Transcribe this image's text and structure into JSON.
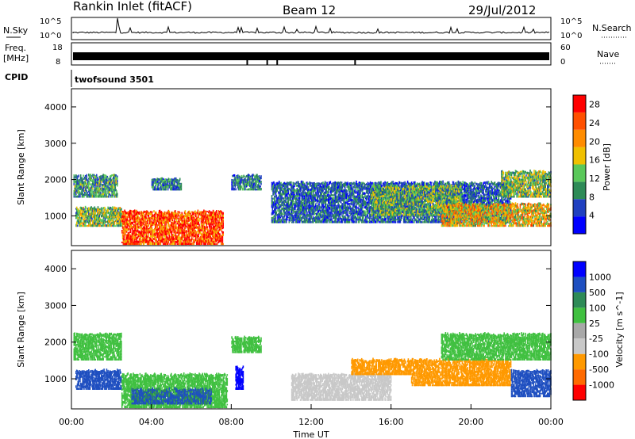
{
  "header": {
    "station": "Rankin Inlet (fitACF)",
    "beam": "Beam 12",
    "date": "29/Jul/2012"
  },
  "noise_panel": {
    "left_label": "N.Sky",
    "right_label": "N.Search",
    "left_ticks": [
      "10^5",
      "10^0"
    ],
    "right_ticks": [
      "10^5",
      "10^0"
    ]
  },
  "freq_panel": {
    "left_label_top": "Freq.",
    "left_label_unit": "[MHz]",
    "right_label": "Nave",
    "left_ticks": [
      "18",
      "8"
    ],
    "right_ticks": [
      "60",
      "0"
    ]
  },
  "cpid": {
    "label": "CPID",
    "value": "twofsound 3501"
  },
  "colors": {
    "power_scale": [
      "#0000ff",
      "#2040c0",
      "#2e8b57",
      "#5ac85a",
      "#f0c000",
      "#ff8c00",
      "#ff5000",
      "#ff0000"
    ],
    "velocity_scale": [
      "#ff0000",
      "#ff6a00",
      "#ff9900",
      "#c8c8c8",
      "#a8a8a8",
      "#40c040",
      "#2e8b57",
      "#1e4fc0",
      "#0000ff"
    ]
  },
  "chart_data": [
    {
      "type": "heatmap",
      "title": "",
      "ylabel": "Slant Range [km]",
      "xlabel": "",
      "xlim": [
        "00:00",
        "00:00"
      ],
      "ylim": [
        180,
        4500
      ],
      "x_tick_labels": [
        "00:00",
        "04:00",
        "08:00",
        "12:00",
        "16:00",
        "20:00",
        "00:00"
      ],
      "y_ticks": [
        1000,
        2000,
        3000,
        4000
      ],
      "colorbar": {
        "label": "Power [dB]",
        "ticks": [
          4,
          8,
          12,
          16,
          20,
          24,
          28
        ],
        "range": [
          0,
          30
        ]
      },
      "regions": [
        {
          "t0": 0.1,
          "t1": 2.3,
          "r0": 1500,
          "r1": 2100,
          "value": 10
        },
        {
          "t0": 0.2,
          "t1": 2.5,
          "r0": 700,
          "r1": 1200,
          "value": 13
        },
        {
          "t0": 2.5,
          "t1": 7.6,
          "r0": 200,
          "r1": 1100,
          "value": 26
        },
        {
          "t0": 4.0,
          "t1": 5.5,
          "r0": 1700,
          "r1": 2000,
          "value": 8
        },
        {
          "t0": 8.0,
          "t1": 9.5,
          "r0": 1700,
          "r1": 2100,
          "value": 9
        },
        {
          "t0": 10.0,
          "t1": 22.0,
          "r0": 800,
          "r1": 1900,
          "value": 7
        },
        {
          "t0": 15.0,
          "t1": 19.5,
          "r0": 1000,
          "r1": 1800,
          "value": 12
        },
        {
          "t0": 18.5,
          "t1": 24.0,
          "r0": 700,
          "r1": 1300,
          "value": 18
        },
        {
          "t0": 21.5,
          "t1": 24.0,
          "r0": 1500,
          "r1": 2200,
          "value": 13
        }
      ]
    },
    {
      "type": "heatmap",
      "title": "",
      "ylabel": "Slant Range [km]",
      "xlabel": "Time UT",
      "xlim": [
        "00:00",
        "00:00"
      ],
      "ylim": [
        180,
        4500
      ],
      "x_tick_labels": [
        "00:00",
        "04:00",
        "08:00",
        "12:00",
        "16:00",
        "20:00",
        "00:00"
      ],
      "y_ticks": [
        1000,
        2000,
        3000,
        4000
      ],
      "colorbar": {
        "label": "Velocity [m s^-1]",
        "ticks": [
          1000,
          500,
          100,
          25,
          -25,
          -100,
          -500,
          -1000
        ]
      },
      "regions": [
        {
          "t0": 0.1,
          "t1": 2.5,
          "r0": 1500,
          "r1": 2200,
          "value": 5
        },
        {
          "t0": 0.2,
          "t1": 2.5,
          "r0": 700,
          "r1": 1200,
          "value": 150
        },
        {
          "t0": 2.5,
          "t1": 7.8,
          "r0": 200,
          "r1": 1100,
          "value": 10
        },
        {
          "t0": 3.0,
          "t1": 7.0,
          "r0": 300,
          "r1": 700,
          "value": 120
        },
        {
          "t0": 8.0,
          "t1": 9.5,
          "r0": 1700,
          "r1": 2100,
          "value": 5
        },
        {
          "t0": 8.2,
          "t1": 8.6,
          "r0": 700,
          "r1": 1300,
          "value": 800
        },
        {
          "t0": 11.0,
          "t1": 16.0,
          "r0": 400,
          "r1": 1100,
          "value": -60
        },
        {
          "t0": 14.0,
          "t1": 17.0,
          "r0": 1100,
          "r1": 1500,
          "value": -200
        },
        {
          "t0": 17.0,
          "t1": 22.0,
          "r0": 800,
          "r1": 1500,
          "value": -300
        },
        {
          "t0": 18.5,
          "t1": 24.0,
          "r0": 1500,
          "r1": 2200,
          "value": 5
        },
        {
          "t0": 22.0,
          "t1": 24.0,
          "r0": 500,
          "r1": 1200,
          "value": 150
        }
      ]
    }
  ]
}
